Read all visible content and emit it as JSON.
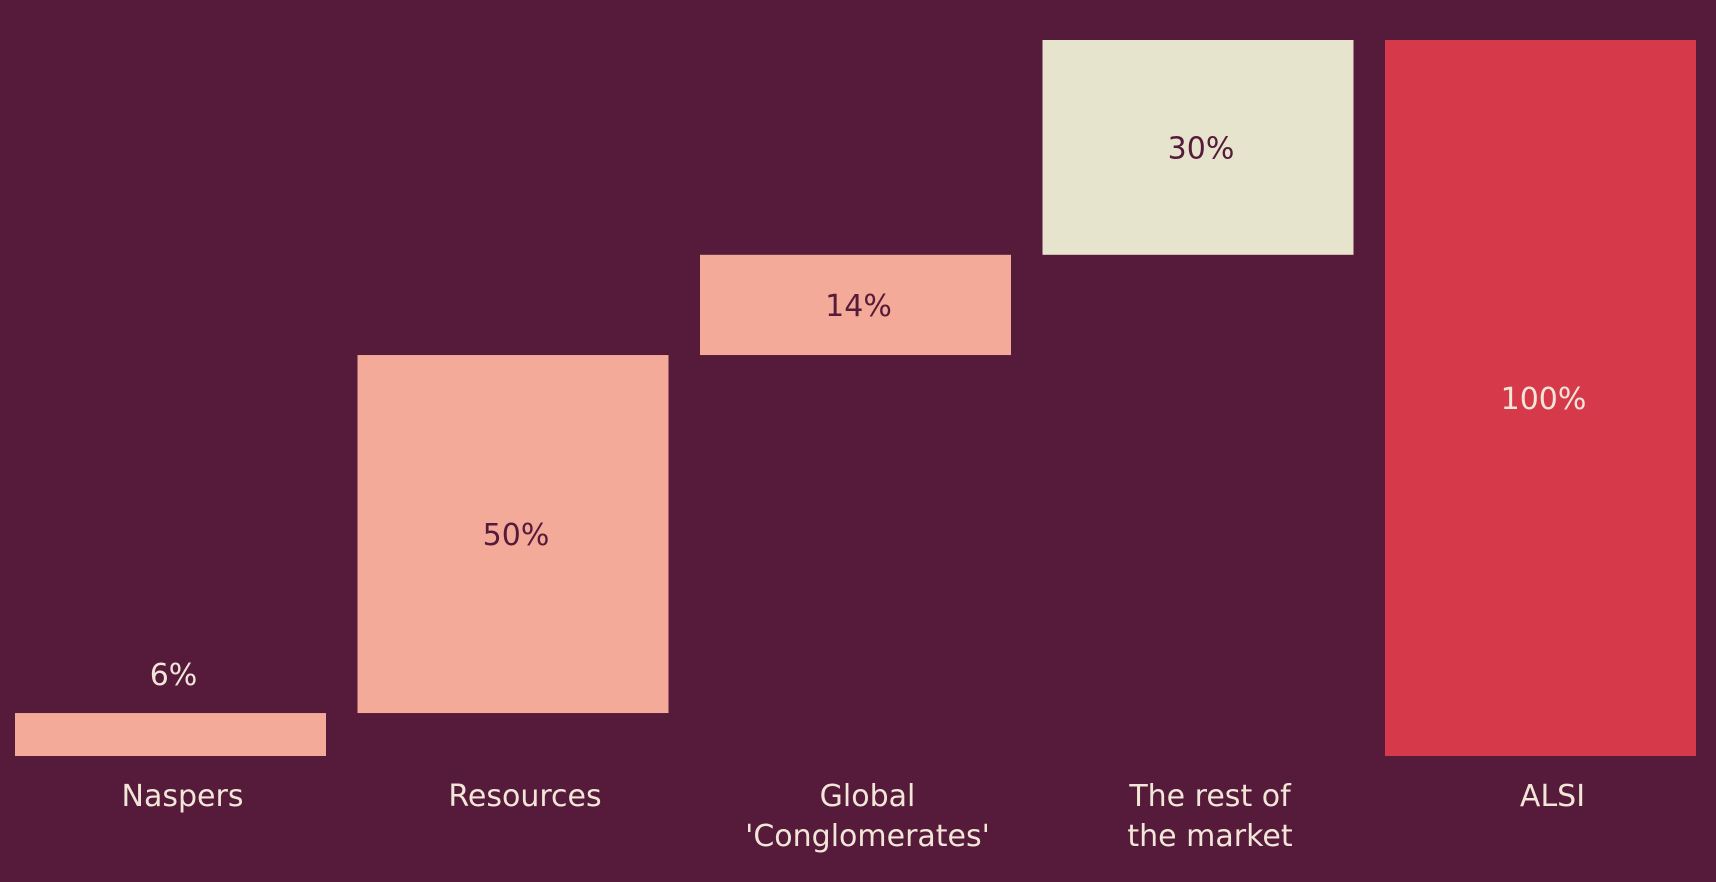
{
  "colors": {
    "background": "#561a3a",
    "segment": "#f4aa98",
    "rest": "#e6e4cc",
    "total": "#d63a4a",
    "label_dark": "#561a3a",
    "label_light": "#f2e6d8"
  },
  "chart_data": {
    "type": "bar",
    "subtype": "waterfall",
    "title": "",
    "xlabel": "",
    "ylabel": "",
    "ylim": [
      0,
      100
    ],
    "grid": false,
    "categories": [
      [
        "Naspers"
      ],
      [
        "Resources"
      ],
      [
        "Global",
        "'Conglomerates'"
      ],
      [
        "The rest of",
        "the market"
      ],
      [
        "ALSI"
      ]
    ],
    "values": [
      6,
      50,
      14,
      30,
      100
    ],
    "value_labels": [
      "6%",
      "50%",
      "14%",
      "30%",
      "100%"
    ],
    "bar_colors": [
      "segment",
      "segment",
      "segment",
      "rest",
      "total"
    ],
    "label_colors": [
      "label_light",
      "label_dark",
      "label_dark",
      "label_dark",
      "label_light"
    ],
    "is_total": [
      false,
      false,
      false,
      false,
      true
    ]
  }
}
